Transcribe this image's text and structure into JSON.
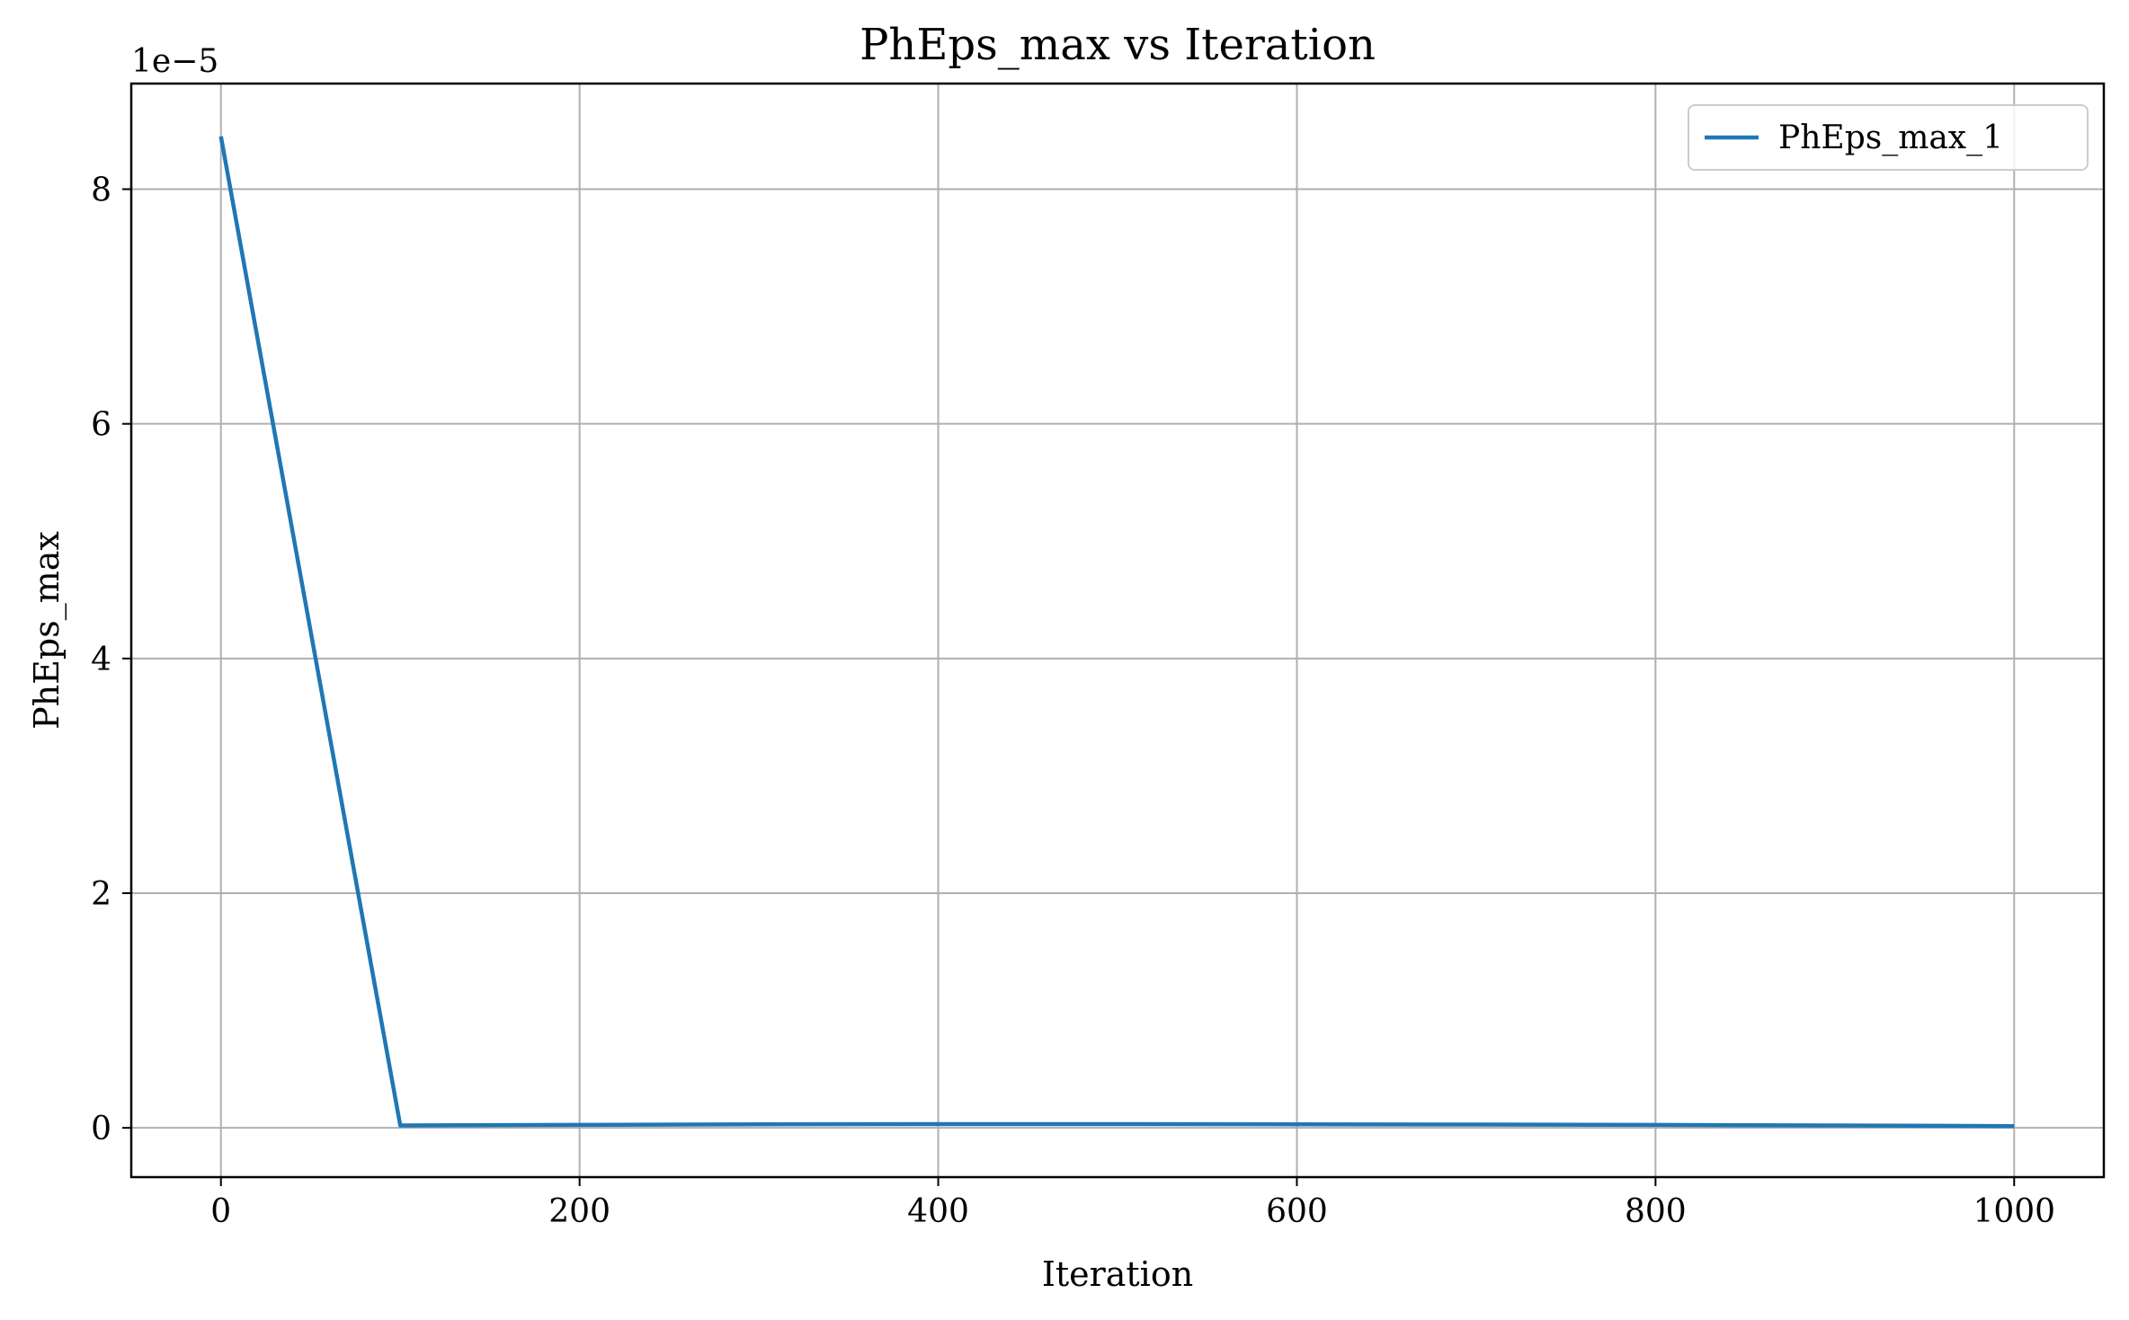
{
  "chart_data": {
    "type": "line",
    "title": "PhEps_max vs Iteration",
    "xlabel": "Iteration",
    "ylabel": "PhEps_max",
    "offset_text": "1e−5",
    "xlim": [
      -50,
      1050
    ],
    "ylim": [
      -4.2e-06,
      8.9e-05
    ],
    "xticks": [
      0,
      200,
      400,
      600,
      800,
      1000
    ],
    "xtick_labels": [
      "0",
      "200",
      "400",
      "600",
      "800",
      "1000"
    ],
    "yticks": [
      0,
      2e-05,
      4e-05,
      6e-05,
      8e-05
    ],
    "ytick_labels": [
      "0",
      "2",
      "4",
      "6",
      "8"
    ],
    "grid": true,
    "legend_position": "top-right",
    "series": [
      {
        "name": "PhEps_max_1",
        "color": "#1f77b4",
        "x": [
          0,
          100,
          200,
          300,
          400,
          500,
          600,
          700,
          800,
          900,
          1000
        ],
        "y": [
          8.45e-05,
          2e-07,
          2.5e-07,
          3e-07,
          3.2e-07,
          3.2e-07,
          3e-07,
          2.8e-07,
          2.5e-07,
          2e-07,
          1.5e-07
        ]
      }
    ]
  }
}
